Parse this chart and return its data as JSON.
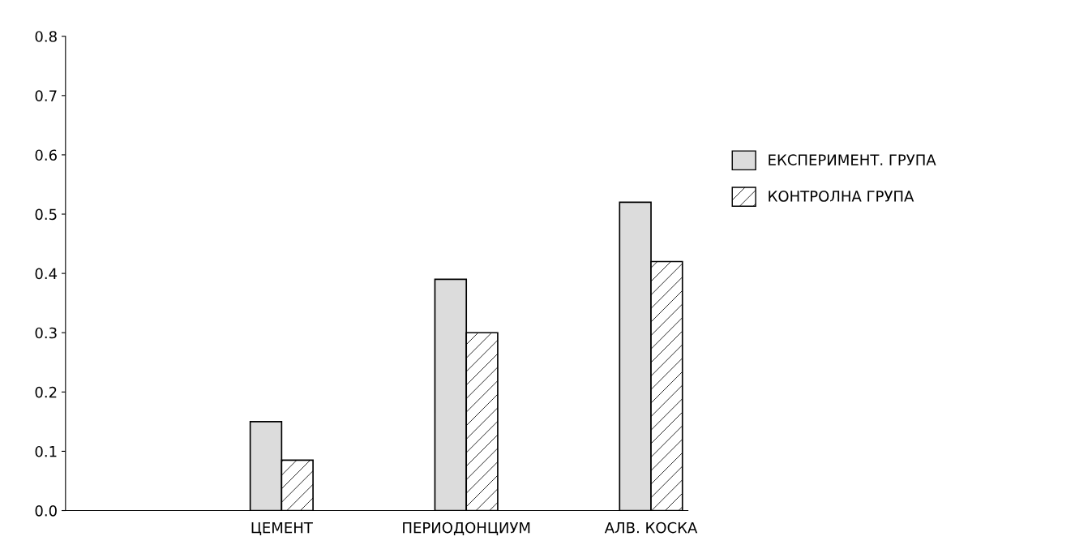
{
  "chart_data": {
    "type": "bar",
    "categories": [
      "ЦЕМЕНТ",
      "ПЕРИОДОНЦИУМ",
      "АЛВ. КОСКА"
    ],
    "series": [
      {
        "name": "ЕКСПЕРИМЕНТ. ГРУПА",
        "color": "#dcdcdc",
        "values": [
          0.15,
          0.39,
          0.52
        ]
      },
      {
        "name": "КОНТРОЛНА ГРУПА",
        "color": "#000000",
        "values": [
          0.085,
          0.3,
          0.42
        ]
      }
    ],
    "ylim": [
      0,
      0.8
    ],
    "yticks": [
      {
        "value": 0,
        "label": "0.0"
      },
      0.1,
      0.2,
      0.3,
      0.4,
      0.5,
      0.6,
      0.7,
      0.8
    ],
    "grid": false,
    "legend": "right"
  }
}
